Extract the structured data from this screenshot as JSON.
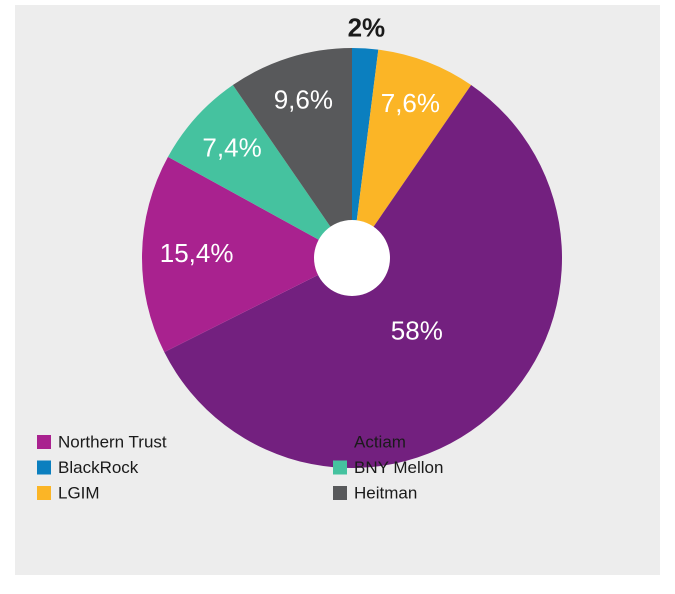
{
  "chart_data": {
    "type": "pie",
    "categories": [
      "BlackRock",
      "LGIM",
      "Actiam",
      "Northern Trust",
      "BNY Mellon",
      "Heitman"
    ],
    "values": [
      2,
      7.6,
      58,
      15.4,
      7.4,
      9.6
    ],
    "value_labels": [
      "2%",
      "7,6%",
      "58%",
      "15,4%",
      "7,4%",
      "9,6%"
    ],
    "colors": [
      "#0b7fbf",
      "#fbb526",
      "#73207f",
      "#a9228f",
      "#45c29f",
      "#58595b"
    ]
  }
}
